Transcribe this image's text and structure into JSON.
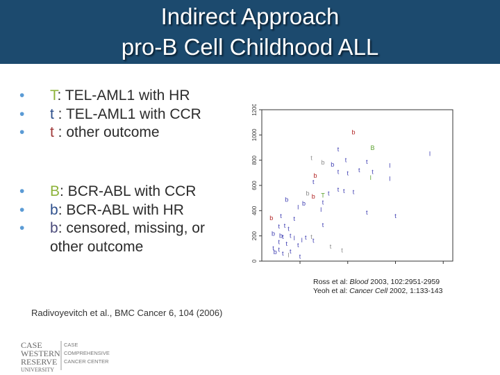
{
  "header": {
    "title_line1": "Indirect Approach",
    "title_line2": "pro-B Cell Childhood ALL"
  },
  "bullets_group1": [
    {
      "symbol": "T",
      "symbol_color": "#8db33a",
      "text": ": TEL-AML1 with HR"
    },
    {
      "symbol": "t",
      "symbol_color": "#2d4f8c",
      "text": " : TEL-AML1 with CCR"
    },
    {
      "symbol": "t",
      "symbol_color": "#a03a3a",
      "text": " : other outcome"
    }
  ],
  "bullets_group2": [
    {
      "symbol": "B",
      "symbol_color": "#8db33a",
      "text": ": BCR-ABL with CCR"
    },
    {
      "symbol": "b",
      "symbol_color": "#2d4f8c",
      "text": ": BCR-ABL with HR"
    },
    {
      "symbol": "b",
      "symbol_color": "#4a4a7a",
      "text": ": censored, missing, or",
      "text2": "other outcome"
    }
  ],
  "citation": "Radivoyevitch et al., BMC Cancer 6, 104 (2006)",
  "refs": [
    {
      "prefix": "Ross et al: ",
      "journal": "Blood",
      "suffix": " 2003, 102:2951-2959"
    },
    {
      "prefix": "Yeoh et al: ",
      "journal": "Cancer Cell",
      "suffix": " 2002, 1:133-143"
    }
  ],
  "logo": {
    "line1": "CASE",
    "line2": "WESTERN",
    "line3": "RESERVE",
    "line4": "UNIVERSITY",
    "right1": "CASE",
    "right2": "COMPREHENSIVE",
    "right3": "CANCER CENTER"
  },
  "colors": {
    "header_bg": "#1c4a6e",
    "bullet_dot": "#5b9bd5",
    "green": "#5aa02c",
    "blue": "#3a3ab0",
    "red": "#b02020",
    "gray": "#888888"
  },
  "chart_data": {
    "type": "scatter",
    "title": "",
    "xlabel": "",
    "ylabel": "",
    "ylim": [
      0,
      1200
    ],
    "yticks": [
      "0",
      "200",
      "400",
      "600",
      "800",
      "1000",
      "1200"
    ],
    "grid": false,
    "points": [
      {
        "label": "b",
        "color": "#b02020",
        "x": 0.78,
        "y": 1005
      },
      {
        "label": "B",
        "color": "#5aa02c",
        "x": 0.88,
        "y": 880
      },
      {
        "label": "t",
        "color": "#3a3ab0",
        "x": 0.7,
        "y": 870
      },
      {
        "label": "t",
        "color": "#888888",
        "x": 0.56,
        "y": 800
      },
      {
        "label": "b",
        "color": "#888888",
        "x": 0.62,
        "y": 765
      },
      {
        "label": "b",
        "color": "#3a3ab0",
        "x": 0.67,
        "y": 750
      },
      {
        "label": "t",
        "color": "#3a3ab0",
        "x": 0.74,
        "y": 785
      },
      {
        "label": "t",
        "color": "#3a3ab0",
        "x": 0.85,
        "y": 770
      },
      {
        "label": "t",
        "color": "#3a3ab0",
        "x": 0.81,
        "y": 705
      },
      {
        "label": "l",
        "color": "#3a3ab0",
        "x": 0.97,
        "y": 740
      },
      {
        "label": "l",
        "color": "#3a3ab0",
        "x": 1.18,
        "y": 835
      },
      {
        "label": "l",
        "color": "#5aa02c",
        "x": 0.87,
        "y": 645
      },
      {
        "label": "l",
        "color": "#3a3ab0",
        "x": 0.97,
        "y": 635
      },
      {
        "label": "b",
        "color": "#b02020",
        "x": 0.58,
        "y": 660
      },
      {
        "label": "t",
        "color": "#3a3ab0",
        "x": 0.7,
        "y": 690
      },
      {
        "label": "t",
        "color": "#3a3ab0",
        "x": 0.75,
        "y": 680
      },
      {
        "label": "t",
        "color": "#3a3ab0",
        "x": 0.88,
        "y": 690
      },
      {
        "label": "t",
        "color": "#3a3ab0",
        "x": 0.57,
        "y": 610
      },
      {
        "label": "b",
        "color": "#888888",
        "x": 0.54,
        "y": 520
      },
      {
        "label": "b",
        "color": "#b02020",
        "x": 0.57,
        "y": 495
      },
      {
        "label": "T",
        "color": "#5aa02c",
        "x": 0.62,
        "y": 505
      },
      {
        "label": "t",
        "color": "#3a3ab0",
        "x": 0.65,
        "y": 520
      },
      {
        "label": "t",
        "color": "#3a3ab0",
        "x": 0.7,
        "y": 550
      },
      {
        "label": "t",
        "color": "#3a3ab0",
        "x": 0.73,
        "y": 540
      },
      {
        "label": "t",
        "color": "#3a3ab0",
        "x": 0.78,
        "y": 530
      },
      {
        "label": "b",
        "color": "#3a3ab0",
        "x": 0.43,
        "y": 470
      },
      {
        "label": "b",
        "color": "#3a3ab0",
        "x": 0.52,
        "y": 440
      },
      {
        "label": "l",
        "color": "#3a3ab0",
        "x": 0.49,
        "y": 410
      },
      {
        "label": "t",
        "color": "#3a3ab0",
        "x": 0.62,
        "y": 450
      },
      {
        "label": "b",
        "color": "#b02020",
        "x": 0.35,
        "y": 325
      },
      {
        "label": "t",
        "color": "#3a3ab0",
        "x": 0.4,
        "y": 340
      },
      {
        "label": "t",
        "color": "#3a3ab0",
        "x": 0.47,
        "y": 320
      },
      {
        "label": "l",
        "color": "#3a3ab0",
        "x": 0.61,
        "y": 390
      },
      {
        "label": "t",
        "color": "#3a3ab0",
        "x": 0.85,
        "y": 370
      },
      {
        "label": "t",
        "color": "#3a3ab0",
        "x": 1.0,
        "y": 340
      },
      {
        "label": "t",
        "color": "#3a3ab0",
        "x": 0.39,
        "y": 260
      },
      {
        "label": "t",
        "color": "#3a3ab0",
        "x": 0.42,
        "y": 265
      },
      {
        "label": "t",
        "color": "#3a3ab0",
        "x": 0.44,
        "y": 240
      },
      {
        "label": "t",
        "color": "#3a3ab0",
        "x": 0.62,
        "y": 270
      },
      {
        "label": "b",
        "color": "#3a3ab0",
        "x": 0.36,
        "y": 200
      },
      {
        "label": "b",
        "color": "#3a3ab0",
        "x": 0.4,
        "y": 185
      },
      {
        "label": "t",
        "color": "#3a3ab0",
        "x": 0.41,
        "y": 175
      },
      {
        "label": "t",
        "color": "#3a3ab0",
        "x": 0.45,
        "y": 185
      },
      {
        "label": "l",
        "color": "#3a3ab0",
        "x": 0.47,
        "y": 165
      },
      {
        "label": "l",
        "color": "#3a3ab0",
        "x": 0.51,
        "y": 150
      },
      {
        "label": "t",
        "color": "#3a3ab0",
        "x": 0.53,
        "y": 170
      },
      {
        "label": "t",
        "color": "#3a3ab0",
        "x": 0.57,
        "y": 145
      },
      {
        "label": "t",
        "color": "#3a3ab0",
        "x": 0.39,
        "y": 135
      },
      {
        "label": "t",
        "color": "#3a3ab0",
        "x": 0.43,
        "y": 120
      },
      {
        "label": "t",
        "color": "#3a3ab0",
        "x": 0.49,
        "y": 110
      },
      {
        "label": "t",
        "color": "#888888",
        "x": 0.56,
        "y": 175
      },
      {
        "label": "t",
        "color": "#3a3ab0",
        "x": 0.36,
        "y": 85
      },
      {
        "label": "b",
        "color": "#3a3ab0",
        "x": 0.37,
        "y": 55
      },
      {
        "label": "t",
        "color": "#3a3ab0",
        "x": 0.39,
        "y": 75
      },
      {
        "label": "t",
        "color": "#3a3ab0",
        "x": 0.41,
        "y": 45
      },
      {
        "label": "t",
        "color": "#3a3ab0",
        "x": 0.45,
        "y": 60
      },
      {
        "label": "l",
        "color": "#888888",
        "x": 0.44,
        "y": 30
      },
      {
        "label": "t",
        "color": "#888888",
        "x": 0.66,
        "y": 100
      },
      {
        "label": "t",
        "color": "#888888",
        "x": 0.72,
        "y": 70
      },
      {
        "label": "t",
        "color": "#3a3ab0",
        "x": 0.5,
        "y": 20
      }
    ]
  }
}
